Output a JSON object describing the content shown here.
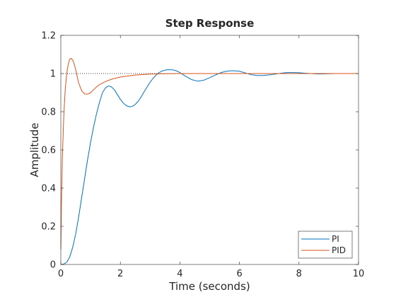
{
  "chart_data": {
    "type": "line",
    "title": "Step Response",
    "xlabel": "Time (seconds)",
    "ylabel": "Amplitude",
    "xlim": [
      0,
      10
    ],
    "ylim": [
      0,
      1.2
    ],
    "xticks": [
      0,
      2,
      4,
      6,
      8,
      10
    ],
    "yticks": [
      0,
      0.2,
      0.4,
      0.6,
      0.8,
      1,
      1.2
    ],
    "xtick_labels": [
      "0",
      "2",
      "4",
      "6",
      "8",
      "10"
    ],
    "ytick_labels": [
      "0",
      "0.2",
      "0.4",
      "0.6",
      "0.8",
      "1",
      "1.2"
    ],
    "grid": false,
    "legend": {
      "location": "bottom-right"
    },
    "reference_line": {
      "y": 1,
      "style": "dotted",
      "color": "#000000"
    },
    "series": [
      {
        "name": "PI",
        "color": "#0072bd",
        "x": [
          0,
          0.1,
          0.2,
          0.3,
          0.4,
          0.5,
          0.6,
          0.7,
          0.8,
          0.9,
          1.0,
          1.1,
          1.2,
          1.3,
          1.4,
          1.5,
          1.6,
          1.7,
          1.8,
          1.9,
          2.0,
          2.1,
          2.2,
          2.3,
          2.4,
          2.5,
          2.6,
          2.7,
          2.8,
          2.9,
          3.0,
          3.1,
          3.2,
          3.3,
          3.4,
          3.5,
          3.6,
          3.7,
          3.8,
          3.9,
          4.0,
          4.2,
          4.4,
          4.6,
          4.8,
          5.0,
          5.2,
          5.4,
          5.6,
          5.8,
          6.0,
          6.2,
          6.4,
          6.6,
          6.8,
          7.0,
          7.2,
          7.4,
          7.6,
          7.8,
          8.0,
          8.2,
          8.4,
          8.6,
          8.8,
          9.0,
          9.2,
          9.5
        ],
        "values": [
          0,
          0.002,
          0.012,
          0.04,
          0.09,
          0.16,
          0.25,
          0.35,
          0.45,
          0.55,
          0.64,
          0.72,
          0.79,
          0.85,
          0.9,
          0.925,
          0.935,
          0.93,
          0.915,
          0.89,
          0.865,
          0.845,
          0.832,
          0.826,
          0.828,
          0.838,
          0.855,
          0.878,
          0.905,
          0.93,
          0.955,
          0.975,
          0.992,
          1.005,
          1.013,
          1.018,
          1.02,
          1.02,
          1.018,
          1.013,
          1.005,
          0.985,
          0.968,
          0.96,
          0.965,
          0.978,
          0.993,
          1.006,
          1.013,
          1.015,
          1.012,
          1.003,
          0.994,
          0.99,
          0.99,
          0.993,
          0.997,
          1.002,
          1.005,
          1.005,
          1.004,
          1.002,
          1.0,
          0.998,
          0.998,
          0.999,
          1.0,
          1.0
        ]
      },
      {
        "name": "PID",
        "color": "#d95319",
        "x": [
          0,
          0.02,
          0.05,
          0.1,
          0.15,
          0.2,
          0.25,
          0.3,
          0.35,
          0.4,
          0.45,
          0.5,
          0.55,
          0.6,
          0.7,
          0.8,
          0.9,
          1.0,
          1.1,
          1.2,
          1.3,
          1.5,
          1.7,
          2.0,
          2.5,
          3.0,
          3.5,
          4.0,
          5.0,
          6.0,
          7.0,
          8.0,
          9.0,
          10.0
        ],
        "values": [
          0.08,
          0.3,
          0.55,
          0.78,
          0.92,
          1.0,
          1.05,
          1.075,
          1.08,
          1.07,
          1.05,
          1.02,
          0.985,
          0.95,
          0.91,
          0.893,
          0.892,
          0.9,
          0.915,
          0.93,
          0.942,
          0.958,
          0.97,
          0.982,
          0.992,
          0.997,
          0.999,
          1.0,
          1.0,
          1.0,
          1.0,
          1.0,
          1.0,
          1.0
        ]
      }
    ]
  }
}
